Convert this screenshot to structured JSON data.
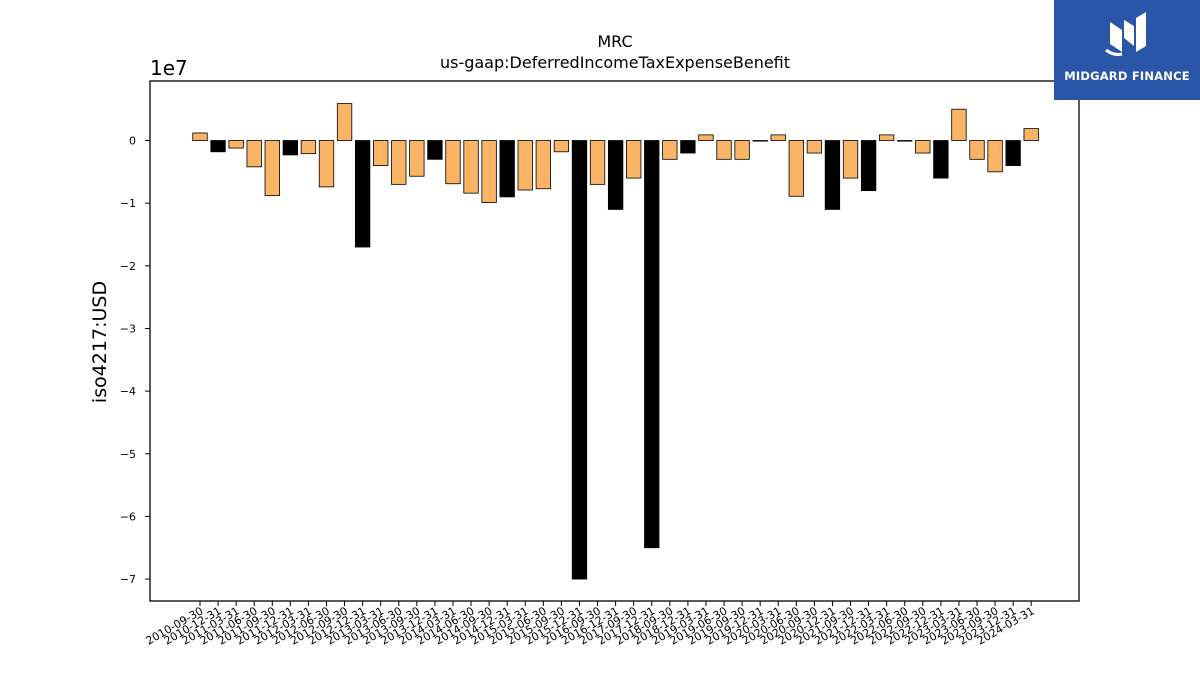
{
  "brand": {
    "name": "MIDGARD FINANCE",
    "background": "#2a56a8",
    "icon": "midgard-logo-icon"
  },
  "chart_data": {
    "type": "bar",
    "title": "MRC",
    "subtitle": "us-gaap:DeferredIncomeTaxExpenseBenefit",
    "ylabel": "iso4217:USD",
    "xlabel": "",
    "offset_label": "1e7",
    "ylim": [
      -73500000,
      9500000
    ],
    "yticks": [
      0,
      -10000000,
      -20000000,
      -30000000,
      -40000000,
      -50000000,
      -60000000,
      -70000000
    ],
    "ytick_labels": [
      "0",
      "−1",
      "−2",
      "−3",
      "−4",
      "−5",
      "−6",
      "−7"
    ],
    "grid": false,
    "colors": {
      "annual": "#000000",
      "quarterly": "#f9b466",
      "edge": "#000000"
    },
    "categories": [
      "2010-09-30",
      "2010-12-31",
      "2011-03-31",
      "2011-06-30",
      "2011-09-30",
      "2011-12-31",
      "2012-03-31",
      "2012-06-30",
      "2012-09-30",
      "2012-12-31",
      "2013-03-31",
      "2013-06-30",
      "2013-09-30",
      "2013-12-31",
      "2014-03-31",
      "2014-06-30",
      "2014-09-30",
      "2014-12-31",
      "2015-03-31",
      "2015-06-30",
      "2015-09-30",
      "2015-12-31",
      "2016-09-30",
      "2016-12-31",
      "2017-09-30",
      "2017-12-31",
      "2018-09-30",
      "2018-12-31",
      "2019-03-31",
      "2019-06-30",
      "2019-09-30",
      "2019-12-31",
      "2020-03-31",
      "2020-06-30",
      "2020-09-30",
      "2020-12-31",
      "2021-09-30",
      "2021-12-31",
      "2022-03-31",
      "2022-06-30",
      "2022-09-30",
      "2022-12-31",
      "2023-03-31",
      "2023-06-30",
      "2023-09-30",
      "2023-12-31",
      "2024-03-31"
    ],
    "values": [
      1200000,
      -1800000,
      -1200000,
      -4200000,
      -8800000,
      -2300000,
      -2100000,
      -7400000,
      5900000,
      -17000000,
      -4000000,
      -7000000,
      -5700000,
      -3000000,
      -6900000,
      -8400000,
      -9900000,
      -9000000,
      -7900000,
      -7700000,
      -1800000,
      -70000000,
      -7000000,
      -11000000,
      -6000000,
      -65000000,
      -3000000,
      -2000000,
      900000,
      -3000000,
      -3000000,
      -100000,
      900000,
      -8900000,
      -2000000,
      -11000000,
      -6000000,
      -8000000,
      900000,
      -100000,
      -2000000,
      -6000000,
      5000000,
      -3000000,
      -5000000,
      -4000000,
      1900000
    ],
    "is_annual": [
      false,
      true,
      false,
      false,
      false,
      true,
      false,
      false,
      false,
      true,
      false,
      false,
      false,
      true,
      false,
      false,
      false,
      true,
      false,
      false,
      false,
      true,
      false,
      true,
      false,
      true,
      false,
      true,
      false,
      false,
      false,
      false,
      false,
      false,
      false,
      true,
      false,
      true,
      false,
      false,
      false,
      true,
      false,
      false,
      false,
      true,
      false
    ]
  }
}
